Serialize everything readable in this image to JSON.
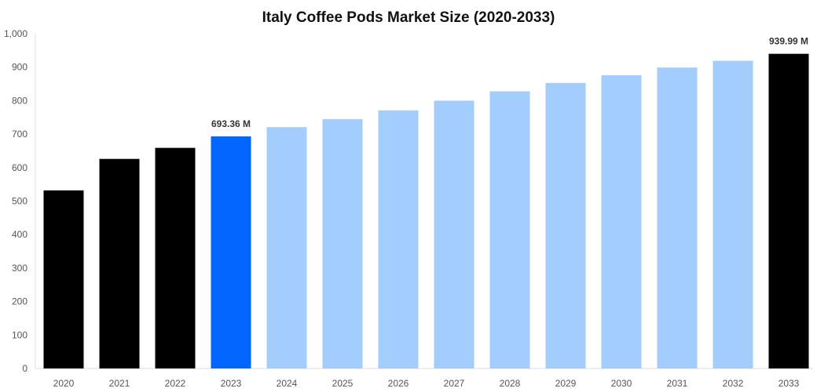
{
  "chart_data": {
    "type": "bar",
    "title": "Italy Coffee Pods Market Size (2020-2033)",
    "xlabel": "",
    "ylabel": "",
    "ylim": [
      0,
      1000
    ],
    "yticks": [
      "0",
      "100",
      "200",
      "300",
      "400",
      "500",
      "600",
      "700",
      "800",
      "900",
      "1,000"
    ],
    "grid": false,
    "categories": [
      "2020",
      "2021",
      "2022",
      "2023",
      "2024",
      "2025",
      "2026",
      "2027",
      "2028",
      "2029",
      "2030",
      "2031",
      "2032",
      "2033"
    ],
    "values": [
      532,
      626,
      659,
      693.36,
      721,
      745,
      771,
      800,
      828,
      853,
      876,
      899,
      919,
      939.99
    ],
    "bar_colors": [
      "#000000",
      "#000000",
      "#000000",
      "#0066ff",
      "#a2cdfd",
      "#a2cdfd",
      "#a2cdfd",
      "#a2cdfd",
      "#a2cdfd",
      "#a2cdfd",
      "#a2cdfd",
      "#a2cdfd",
      "#a2cdfd",
      "#000000"
    ],
    "data_labels": {
      "2023": "693.36 M",
      "2033": "939.99 M"
    }
  }
}
